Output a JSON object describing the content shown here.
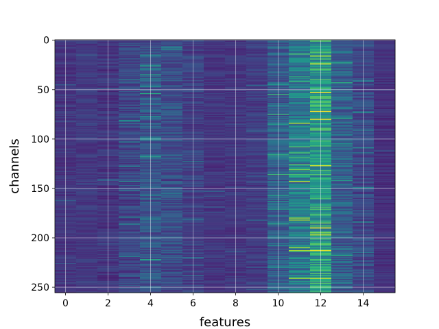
{
  "chart_data": {
    "type": "heatmap",
    "title": "",
    "xlabel": "features",
    "ylabel": "channels",
    "n_columns": 16,
    "n_rows": 256,
    "x_ticks": [
      0,
      2,
      4,
      6,
      8,
      10,
      12,
      14
    ],
    "y_ticks": [
      0,
      50,
      100,
      150,
      200,
      250
    ],
    "xlim": [
      -0.5,
      15.5
    ],
    "ylim": [
      255.5,
      -0.5
    ],
    "y_inverted": true,
    "grid": true,
    "colormap": "viridis",
    "column_mean_intensity": [
      0.16,
      0.17,
      0.16,
      0.21,
      0.27,
      0.24,
      0.2,
      0.16,
      0.16,
      0.18,
      0.3,
      0.4,
      0.55,
      0.31,
      0.22,
      0.14
    ],
    "column_variability": [
      0.05,
      0.05,
      0.06,
      0.09,
      0.11,
      0.1,
      0.08,
      0.05,
      0.05,
      0.06,
      0.12,
      0.16,
      0.2,
      0.12,
      0.09,
      0.05
    ],
    "hotspots": [
      {
        "column": 12,
        "row": 16,
        "value": 0.9
      },
      {
        "column": 12,
        "row": 24,
        "value": 0.95
      },
      {
        "column": 11,
        "row": 14,
        "value": 0.7
      },
      {
        "column": 12,
        "row": 127,
        "value": 0.93
      },
      {
        "column": 12,
        "row": 185,
        "value": 0.8
      },
      {
        "column": 12,
        "row": 197,
        "value": 0.92
      },
      {
        "column": 11,
        "row": 213,
        "value": 0.88
      },
      {
        "column": 12,
        "row": 236,
        "value": 0.75
      }
    ]
  }
}
